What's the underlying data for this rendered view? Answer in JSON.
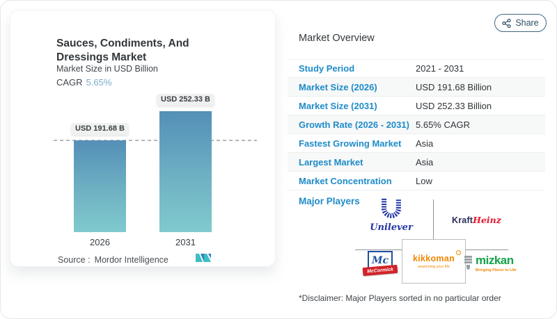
{
  "share": {
    "label": "Share"
  },
  "chart_panel": {
    "title": "Sauces, Condiments, And Dressings Market",
    "subtitle": "Market Size in USD Billion",
    "cagr_label": "CAGR",
    "cagr_value": "5.65%",
    "source_label": "Source :",
    "source_value": "Mordor Intelligence"
  },
  "chart_data": {
    "type": "bar",
    "title": "Sauces, Condiments, And Dressings Market",
    "ylabel": "Market Size in USD Billion",
    "categories": [
      "2026",
      "2031"
    ],
    "values": [
      191.68,
      252.33
    ],
    "value_labels": [
      "USD 191.68 B",
      "USD 252.33 B"
    ],
    "ylim": [
      0,
      252.33
    ],
    "grid": false,
    "reference_line_at": 191.68,
    "bar_color_top": "#548fb7",
    "bar_color_bottom": "#80cace"
  },
  "overview": {
    "heading": "Market Overview",
    "rows": [
      {
        "label": "Study Period",
        "value": "2021 - 2031"
      },
      {
        "label": "Market Size (2026)",
        "value": "USD 191.68 Billion"
      },
      {
        "label": "Market Size (2031)",
        "value": "USD 252.33 Billion"
      },
      {
        "label": "Growth Rate (2026 - 2031)",
        "value": "5.65% CAGR"
      },
      {
        "label": "Fastest Growing Market",
        "value": "Asia"
      },
      {
        "label": "Largest Market",
        "value": "Asia"
      },
      {
        "label": "Market Concentration",
        "value": "Low"
      }
    ],
    "major_players_label": "Major Players",
    "disclaimer": "*Disclaimer: Major Players sorted in no particular order"
  },
  "players": {
    "unilever": {
      "name": "Unilever"
    },
    "kraftheinz": {
      "kraft": "Kraft",
      "heinz": "Heinz"
    },
    "mccormick": {
      "mc": "Mc",
      "name": "McCormick"
    },
    "kikkoman": {
      "name": "kikkoman",
      "tagline": "seasoning your life"
    },
    "mizkan": {
      "name": "mizkan",
      "tagline": "Bringing Flavor to Life"
    }
  },
  "colors": {
    "label_blue": "#1e8bc9",
    "cagr_blue": "#7aabca",
    "share_outline": "#3e677f",
    "bar_gradient_top": "#548fb7",
    "bar_gradient_bottom": "#80cace",
    "row_stripe": "#f7f8f8",
    "unilever_blue": "#2236a6",
    "kraft_navy": "#262c56",
    "heinz_red": "#e2182d",
    "mccormick_red": "#d2232a",
    "kikkoman_orange": "#f08700",
    "mizkan_green": "#15a24a"
  }
}
